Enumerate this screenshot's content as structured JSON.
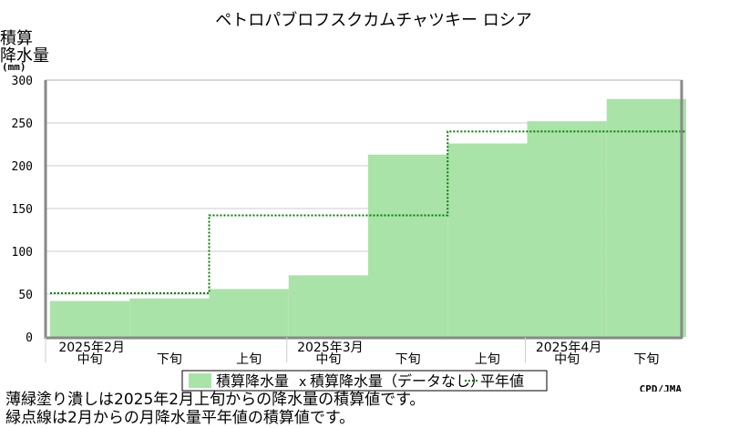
{
  "chart_data": {
    "type": "bar",
    "title": "ペトロパブロフスクカムチャツキー ロシア",
    "ylabel": [
      "積算",
      "降水量",
      "(mm)"
    ],
    "ylim": [
      0,
      300
    ],
    "yticks": [
      0,
      50,
      100,
      150,
      200,
      250,
      300
    ],
    "grid": true,
    "months": [
      "2025年2月",
      "2025年3月",
      "2025年4月"
    ],
    "dekads": [
      "中旬",
      "下旬",
      "上旬",
      "中旬",
      "下旬",
      "上旬",
      "中旬",
      "下旬"
    ],
    "series": [
      {
        "name": "積算降水量",
        "color": "#aae3a8",
        "values": [
          42,
          45,
          56,
          72,
          213,
          226,
          252,
          278
        ]
      },
      {
        "name": "平年値",
        "color": "#008000",
        "style": "dotted",
        "values": [
          51,
          51,
          142,
          142,
          142,
          240,
          240,
          240
        ]
      }
    ],
    "legend": {
      "items": [
        "積算降水量",
        "積算降水量（データなし）",
        "平年値"
      ],
      "missing_marker": "x",
      "placement": "bottom"
    },
    "credit": "CPD/JMA"
  },
  "notes": [
    "薄緑塗り潰しは2025年2月上旬からの降水量の積算値です。",
    "緑点線は2月からの月降水量平年値の積算値です。"
  ]
}
